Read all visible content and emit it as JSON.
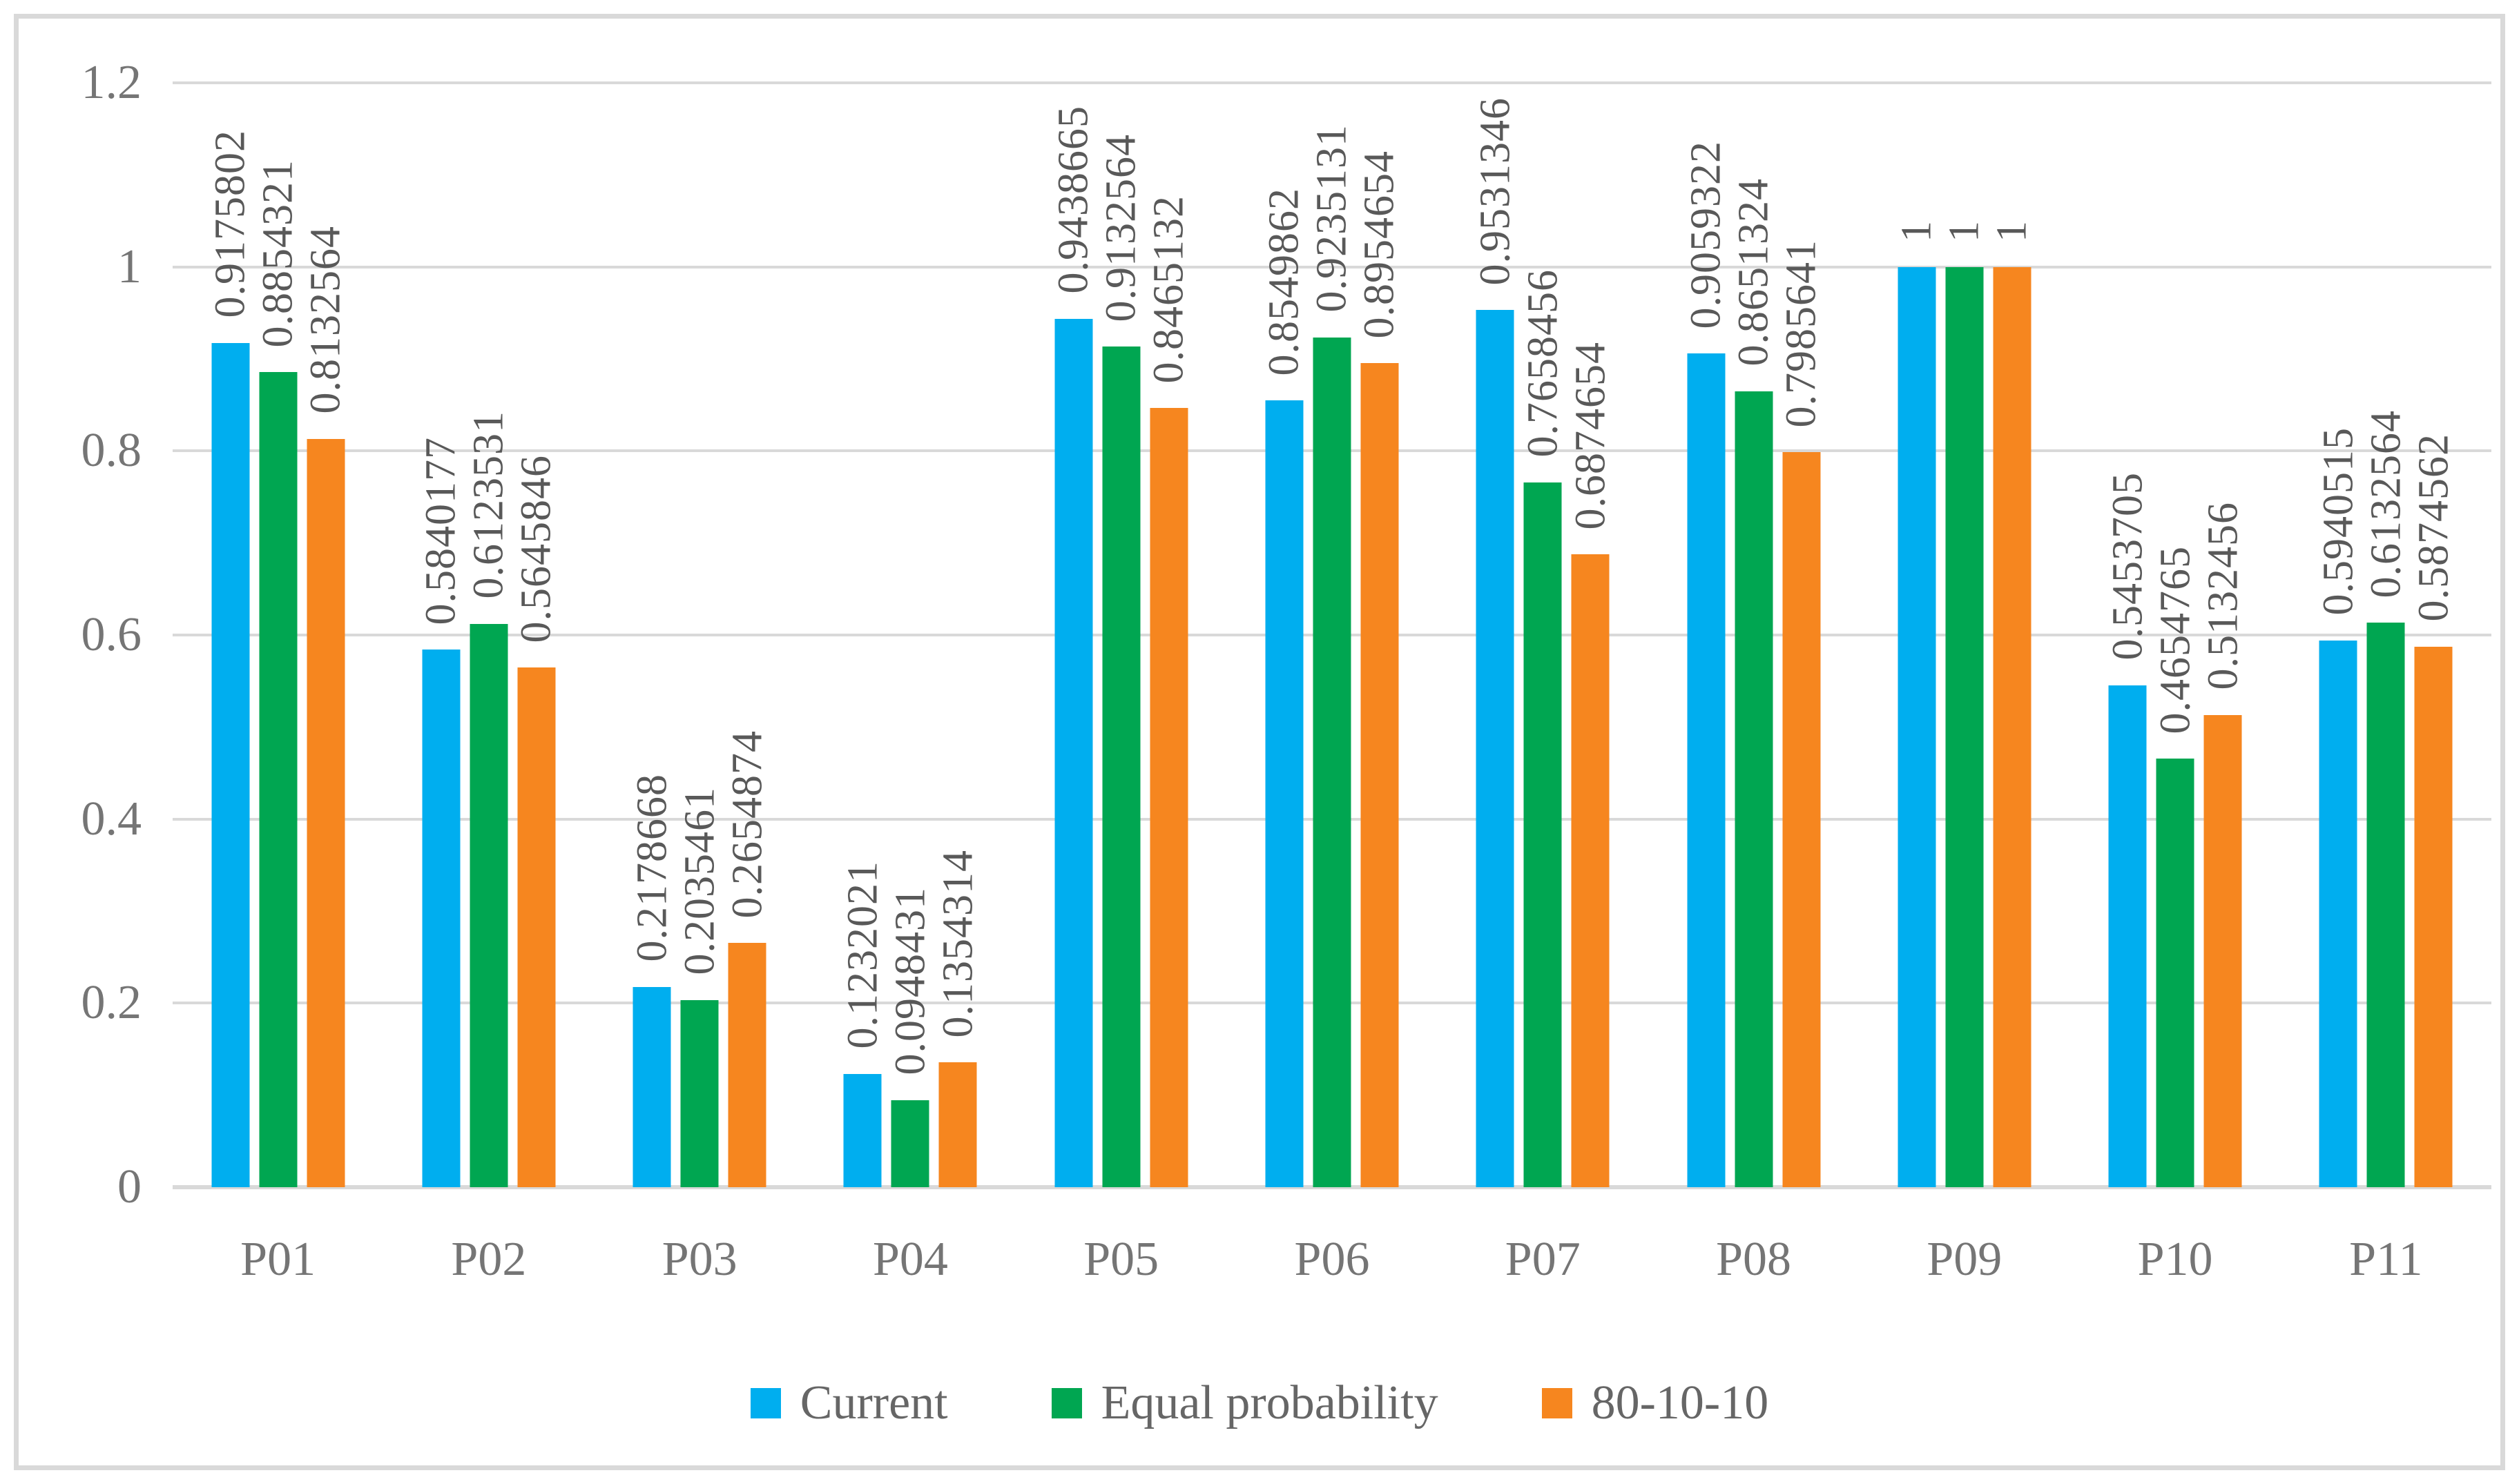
{
  "figure": {
    "background": "#ffffff",
    "border_color": "#d9d9d9",
    "gridline_color": "#d9d9d9",
    "axis_label_color": "#757575",
    "data_label_color": "#595959",
    "legend_text_color": "#666666"
  },
  "chart_data": {
    "type": "bar",
    "title": "",
    "xlabel": "",
    "ylabel": "",
    "grid": true,
    "legend_position": "bottom",
    "data_labels_rotated_90": true,
    "ylim": [
      0,
      1.2
    ],
    "yticks": [
      "0",
      "0.2",
      "0.4",
      "0.6",
      "0.8",
      "1",
      "1.2"
    ],
    "categories": [
      "P01",
      "P02",
      "P03",
      "P04",
      "P05",
      "P06",
      "P07",
      "P08",
      "P09",
      "P10",
      "P11"
    ],
    "series": [
      {
        "name": "Current",
        "color": "#00AEEF",
        "values": [
          0.9175802,
          0.5840177,
          0.2178668,
          0.1232021,
          0.9438665,
          0.8549862,
          0.9531346,
          0.9059322,
          1,
          0.5453705,
          0.5940515
        ]
      },
      {
        "name": "Equal probability",
        "color": "#00A651",
        "values": [
          0.8854321,
          0.6123531,
          0.2035461,
          0.0948431,
          0.9132564,
          0.9235131,
          0.7658456,
          0.8651324,
          1,
          0.4654765,
          0.6132564
        ]
      },
      {
        "name": "80-10-10",
        "color": "#F6861F",
        "values": [
          0.8132564,
          0.5645846,
          0.2654874,
          0.1354314,
          0.8465132,
          0.8954654,
          0.6874654,
          0.7985641,
          1,
          0.5132456,
          0.5874562
        ]
      }
    ]
  }
}
